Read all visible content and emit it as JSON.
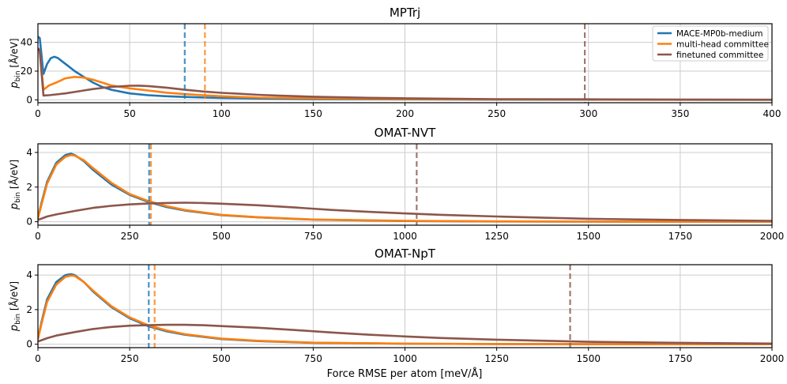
{
  "figure": {
    "xlabel": "Force RMSE per atom [meV/Å]",
    "ylabel_main": "p",
    "ylabel_sub": "bin",
    "ylabel_unit": " [Å/eV]"
  },
  "colors": {
    "mace": "#1f77b4",
    "multi": "#ff7f0e",
    "fine": "#8c564b",
    "grid": "#cccccc"
  },
  "legend": {
    "entries": [
      "MACE-MP0b-medium",
      "multi-head committee",
      "finetuned committee"
    ],
    "placement": "top-right"
  },
  "chart_data": [
    {
      "type": "line",
      "title": "MPTrj",
      "xlim": [
        0,
        400
      ],
      "ylim": [
        -2,
        53
      ],
      "xticks": [
        0,
        50,
        100,
        150,
        200,
        250,
        300,
        350,
        400
      ],
      "yticks": [
        0,
        20,
        40
      ],
      "grid": true,
      "legend": true,
      "vlines": [
        80,
        91,
        298
      ],
      "series": [
        {
          "name": "MACE-MP0b-medium",
          "x": [
            0,
            1,
            3,
            5,
            7,
            9,
            11,
            13,
            16,
            20,
            25,
            30,
            35,
            40,
            50,
            60,
            70,
            80,
            100,
            120,
            150,
            200,
            250,
            300,
            350,
            400
          ],
          "y": [
            44,
            43,
            18,
            25,
            29,
            30,
            29,
            27,
            24,
            20,
            16,
            12,
            9,
            7,
            4.5,
            3.2,
            2.5,
            2,
            1.3,
            0.9,
            0.5,
            0.3,
            0.15,
            0.1,
            0.05,
            0.02
          ]
        },
        {
          "name": "multi-head committee",
          "x": [
            0,
            1,
            3,
            6,
            10,
            15,
            20,
            25,
            30,
            35,
            40,
            50,
            60,
            70,
            80,
            90,
            100,
            120,
            150,
            200,
            250,
            300,
            350,
            400
          ],
          "y": [
            36,
            34,
            7,
            10,
            12,
            15,
            16,
            15.5,
            14,
            12,
            10,
            8,
            6.5,
            5,
            4,
            3.2,
            2.5,
            1.6,
            1,
            0.5,
            0.3,
            0.2,
            0.1,
            0.05
          ]
        },
        {
          "name": "finetuned committee",
          "x": [
            0,
            1,
            3,
            6,
            10,
            15,
            20,
            25,
            30,
            40,
            50,
            55,
            60,
            70,
            80,
            90,
            100,
            110,
            120,
            130,
            150,
            180,
            200,
            250,
            300,
            350,
            400
          ],
          "y": [
            36,
            34,
            3,
            3.2,
            3.8,
            4.5,
            5.5,
            6.5,
            7.5,
            9,
            9.8,
            9.9,
            9.6,
            8.5,
            7,
            5.8,
            4.9,
            4.2,
            3.5,
            3,
            2.2,
            1.4,
            1.1,
            0.5,
            0.35,
            0.2,
            0.1
          ]
        }
      ]
    },
    {
      "type": "line",
      "title": "OMAT-NVT",
      "xlim": [
        0,
        2000
      ],
      "ylim": [
        -0.2,
        4.5
      ],
      "xticks": [
        0,
        250,
        500,
        750,
        1000,
        1250,
        1500,
        1750,
        2000
      ],
      "yticks": [
        0,
        2,
        4
      ],
      "grid": true,
      "legend": false,
      "vlines": [
        303,
        308,
        1032
      ],
      "series": [
        {
          "name": "MACE-MP0b-medium",
          "x": [
            0,
            10,
            25,
            50,
            75,
            90,
            100,
            125,
            150,
            200,
            250,
            300,
            350,
            400,
            500,
            600,
            750,
            1000,
            1250,
            1500,
            1750,
            2000
          ],
          "y": [
            0.2,
            1.1,
            2.3,
            3.4,
            3.85,
            3.93,
            3.85,
            3.5,
            3.0,
            2.15,
            1.55,
            1.15,
            0.85,
            0.65,
            0.38,
            0.25,
            0.12,
            0.04,
            0.015,
            0.005,
            0,
            0
          ]
        },
        {
          "name": "multi-head committee",
          "x": [
            0,
            10,
            25,
            50,
            75,
            90,
            100,
            125,
            150,
            200,
            250,
            300,
            350,
            400,
            500,
            600,
            750,
            1000,
            1250,
            1500,
            1750,
            2000
          ],
          "y": [
            0.2,
            1.0,
            2.2,
            3.3,
            3.75,
            3.85,
            3.82,
            3.55,
            3.1,
            2.25,
            1.6,
            1.2,
            0.9,
            0.68,
            0.4,
            0.26,
            0.13,
            0.05,
            0.02,
            0.005,
            0,
            0
          ]
        },
        {
          "name": "finetuned committee",
          "x": [
            0,
            25,
            50,
            100,
            150,
            200,
            250,
            300,
            350,
            400,
            450,
            500,
            600,
            700,
            800,
            900,
            1000,
            1100,
            1250,
            1500,
            1750,
            2000
          ],
          "y": [
            0.1,
            0.3,
            0.42,
            0.62,
            0.8,
            0.92,
            1.0,
            1.05,
            1.08,
            1.1,
            1.08,
            1.04,
            0.95,
            0.82,
            0.68,
            0.57,
            0.48,
            0.4,
            0.3,
            0.17,
            0.1,
            0.05
          ]
        }
      ]
    },
    {
      "type": "line",
      "title": "OMAT-NpT",
      "xlim": [
        0,
        2000
      ],
      "ylim": [
        -0.2,
        4.6
      ],
      "xticks": [
        0,
        250,
        500,
        750,
        1000,
        1250,
        1500,
        1750,
        2000
      ],
      "yticks": [
        0,
        2,
        4
      ],
      "grid": true,
      "legend": false,
      "vlines": [
        302,
        318,
        1450
      ],
      "series": [
        {
          "name": "MACE-MP0b-medium",
          "x": [
            0,
            10,
            25,
            50,
            75,
            90,
            100,
            125,
            150,
            200,
            250,
            300,
            350,
            400,
            500,
            600,
            750,
            1000,
            1250,
            1500,
            1750,
            2000
          ],
          "y": [
            0.3,
            1.3,
            2.6,
            3.6,
            4.0,
            4.05,
            4.0,
            3.6,
            3.05,
            2.15,
            1.5,
            1.05,
            0.75,
            0.55,
            0.3,
            0.18,
            0.08,
            0.03,
            0.01,
            0,
            0,
            0
          ]
        },
        {
          "name": "multi-head committee",
          "x": [
            0,
            10,
            25,
            50,
            75,
            90,
            100,
            125,
            150,
            200,
            250,
            300,
            350,
            400,
            500,
            600,
            750,
            1000,
            1250,
            1500,
            1750,
            2000
          ],
          "y": [
            0.3,
            1.2,
            2.45,
            3.45,
            3.9,
            3.97,
            3.95,
            3.6,
            3.1,
            2.2,
            1.55,
            1.1,
            0.8,
            0.58,
            0.32,
            0.2,
            0.09,
            0.03,
            0.01,
            0,
            0,
            0
          ]
        },
        {
          "name": "finetuned committee",
          "x": [
            0,
            25,
            50,
            100,
            150,
            200,
            250,
            300,
            350,
            400,
            450,
            500,
            600,
            700,
            800,
            900,
            1000,
            1100,
            1250,
            1500,
            1750,
            2000
          ],
          "y": [
            0.15,
            0.35,
            0.5,
            0.7,
            0.88,
            1.0,
            1.07,
            1.1,
            1.12,
            1.12,
            1.1,
            1.05,
            0.95,
            0.82,
            0.68,
            0.55,
            0.45,
            0.36,
            0.26,
            0.14,
            0.08,
            0.04
          ]
        }
      ]
    }
  ]
}
